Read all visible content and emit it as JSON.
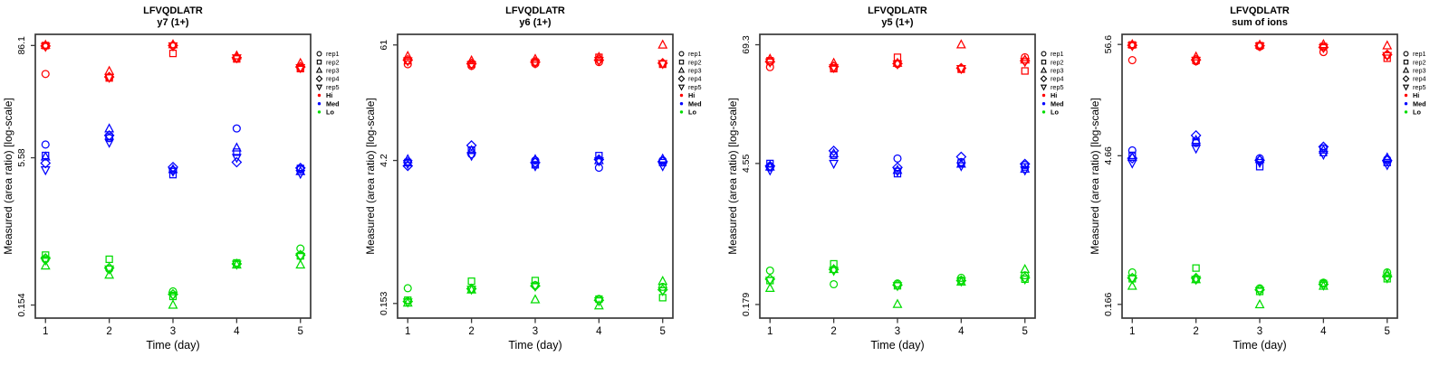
{
  "figure": {
    "background": "#ffffff",
    "xlabel": "Time (day)",
    "ylabel": "Measured (area ratio) [log-scale]",
    "days": [
      1,
      2,
      3,
      4,
      5
    ],
    "xlim": [
      0.84,
      5.16
    ],
    "frame_color": "#3a3a3a",
    "text_color": "#000000"
  },
  "legend": {
    "reps": [
      {
        "label": "rep1",
        "marker": "circle"
      },
      {
        "label": "rep2",
        "marker": "square"
      },
      {
        "label": "rep3",
        "marker": "triangle-up"
      },
      {
        "label": "rep4",
        "marker": "diamond"
      },
      {
        "label": "rep5",
        "marker": "triangle-down"
      }
    ],
    "levels": [
      {
        "label": "Hi",
        "color": "#FF0000"
      },
      {
        "label": "Med",
        "color": "#0000FF"
      },
      {
        "label": "Lo",
        "color": "#00DC00"
      }
    ]
  },
  "chart_data": [
    {
      "type": "scatter",
      "title": "LFVQDLATR",
      "subtitle": "y7 (1+)",
      "xlabel": "Time (day)",
      "ylabel": "Measured (area ratio) [log-scale]",
      "yscale": "log",
      "x": [
        1,
        2,
        3,
        4,
        5
      ],
      "ylim": [
        0.112,
        113
      ],
      "yticks": [
        {
          "label": "86.1",
          "value": 86.1
        },
        {
          "label": "5.58",
          "value": 5.58
        },
        {
          "label": "0.154",
          "value": 0.154
        }
      ],
      "series": [
        {
          "level": "Hi",
          "color": "#FF0000",
          "reps": [
            {
              "rep": "rep1",
              "marker": "circle",
              "y": [
                43,
                39.5,
                86,
                63,
                50
              ]
            },
            {
              "rep": "rep2",
              "marker": "square",
              "y": [
                86,
                39,
                71,
                62,
                49
              ]
            },
            {
              "rep": "rep3",
              "marker": "triangle-up",
              "y": [
                87,
                46,
                88,
                67,
                55.8
              ]
            },
            {
              "rep": "rep4",
              "marker": "diamond",
              "y": [
                85,
                40,
                86,
                64,
                51
              ]
            },
            {
              "rep": "rep5",
              "marker": "triangle-down",
              "y": [
                84,
                39.5,
                85,
                63.5,
                50
              ]
            }
          ]
        },
        {
          "level": "Med",
          "color": "#0000FF",
          "reps": [
            {
              "rep": "rep1",
              "marker": "circle",
              "y": [
                7.7,
                9.0,
                4.1,
                11.4,
                4.2
              ]
            },
            {
              "rep": "rep2",
              "marker": "square",
              "y": [
                5.9,
                9.3,
                3.7,
                6.4,
                4.3
              ]
            },
            {
              "rep": "rep3",
              "marker": "triangle-up",
              "y": [
                5.7,
                11.3,
                4.2,
                7.1,
                4.0
              ]
            },
            {
              "rep": "rep4",
              "marker": "diamond",
              "y": [
                4.9,
                9.6,
                4.45,
                5.0,
                4.35
              ]
            },
            {
              "rep": "rep5",
              "marker": "triangle-down",
              "y": [
                4.15,
                8.1,
                4.0,
                5.6,
                3.8
              ]
            }
          ]
        },
        {
          "level": "Lo",
          "color": "#00DC00",
          "reps": [
            {
              "rep": "rep1",
              "marker": "circle",
              "y": [
                0.47,
                0.37,
                0.215,
                0.42,
                0.61
              ]
            },
            {
              "rep": "rep2",
              "marker": "square",
              "y": [
                0.52,
                0.47,
                0.19,
                0.43,
                0.51
              ]
            },
            {
              "rep": "rep3",
              "marker": "triangle-up",
              "y": [
                0.4,
                0.32,
                0.154,
                0.41,
                0.41
              ]
            },
            {
              "rep": "rep4",
              "marker": "diamond",
              "y": [
                0.48,
                0.38,
                0.2,
                0.42,
                0.52
              ]
            },
            {
              "rep": "rep5",
              "marker": "triangle-down",
              "y": [
                0.46,
                0.37,
                0.195,
                0.415,
                0.5
              ]
            }
          ]
        }
      ]
    },
    {
      "type": "scatter",
      "title": "LFVQDLATR",
      "subtitle": "y6 (1+)",
      "xlabel": "Time (day)",
      "ylabel": "Measured (area ratio) [log-scale]",
      "yscale": "log",
      "x": [
        1,
        2,
        3,
        4,
        5
      ],
      "ylim": [
        0.109,
        78
      ],
      "yticks": [
        {
          "label": "61",
          "value": 61
        },
        {
          "label": "4.2",
          "value": 4.2
        },
        {
          "label": "0.153",
          "value": 0.153
        }
      ],
      "series": [
        {
          "level": "Hi",
          "color": "#FF0000",
          "reps": [
            {
              "rep": "rep1",
              "marker": "circle",
              "y": [
                39,
                37.5,
                39.5,
                41,
                39.5
              ]
            },
            {
              "rep": "rep2",
              "marker": "square",
              "y": [
                42.4,
                39,
                41,
                45.8,
                39
              ]
            },
            {
              "rep": "rep3",
              "marker": "triangle-up",
              "y": [
                47,
                42.4,
                43.9,
                46,
                61
              ]
            },
            {
              "rep": "rep4",
              "marker": "diamond",
              "y": [
                43,
                39.5,
                41,
                43,
                40
              ]
            },
            {
              "rep": "rep5",
              "marker": "triangle-down",
              "y": [
                42,
                38.5,
                40,
                42.5,
                39.5
              ]
            }
          ]
        },
        {
          "level": "Med",
          "color": "#0000FF",
          "reps": [
            {
              "rep": "rep1",
              "marker": "circle",
              "y": [
                4.1,
                4.85,
                4.2,
                3.55,
                4.2
              ]
            },
            {
              "rep": "rep2",
              "marker": "square",
              "y": [
                4.0,
                5.35,
                3.8,
                4.7,
                4.0
              ]
            },
            {
              "rep": "rep3",
              "marker": "triangle-up",
              "y": [
                4.3,
                5.3,
                4.3,
                4.2,
                4.35
              ]
            },
            {
              "rep": "rep4",
              "marker": "diamond",
              "y": [
                3.7,
                5.95,
                4.0,
                4.3,
                4.1
              ]
            },
            {
              "rep": "rep5",
              "marker": "triangle-down",
              "y": [
                3.9,
                4.7,
                3.7,
                4.15,
                3.7
              ]
            }
          ]
        },
        {
          "level": "Lo",
          "color": "#00DC00",
          "reps": [
            {
              "rep": "rep1",
              "marker": "circle",
              "y": [
                0.218,
                0.213,
                0.234,
                0.17,
                0.225
              ]
            },
            {
              "rep": "rep2",
              "marker": "square",
              "y": [
                0.165,
                0.256,
                0.26,
                0.169,
                0.175
              ]
            },
            {
              "rep": "rep3",
              "marker": "triangle-up",
              "y": [
                0.155,
                0.21,
                0.167,
                0.145,
                0.256
              ]
            },
            {
              "rep": "rep4",
              "marker": "diamond",
              "y": [
                0.16,
                0.215,
                0.23,
                0.165,
                0.21
              ]
            },
            {
              "rep": "rep5",
              "marker": "triangle-down",
              "y": [
                0.158,
                0.212,
                0.228,
                0.162,
                0.205
              ]
            }
          ]
        }
      ]
    },
    {
      "type": "scatter",
      "title": "LFVQDLATR",
      "subtitle": "y5 (1+)",
      "xlabel": "Time (day)",
      "ylabel": "Measured (area ratio) [log-scale]",
      "yscale": "log",
      "x": [
        1,
        2,
        3,
        4,
        5
      ],
      "ylim": [
        0.131,
        88
      ],
      "yticks": [
        {
          "label": "69.3",
          "value": 69.3
        },
        {
          "label": "4.55",
          "value": 4.55
        },
        {
          "label": "0.179",
          "value": 0.179
        }
      ],
      "series": [
        {
          "level": "Hi",
          "color": "#FF0000",
          "reps": [
            {
              "rep": "rep1",
              "marker": "circle",
              "y": [
                41.5,
                40.5,
                44.5,
                40,
                52
              ]
            },
            {
              "rep": "rep2",
              "marker": "square",
              "y": [
                48,
                40,
                52,
                39.5,
                38
              ]
            },
            {
              "rep": "rep3",
              "marker": "triangle-up",
              "y": [
                50,
                45.5,
                45.5,
                69.3,
                49
              ]
            },
            {
              "rep": "rep4",
              "marker": "diamond",
              "y": [
                47,
                42,
                45,
                40.5,
                48
              ]
            },
            {
              "rep": "rep5",
              "marker": "triangle-down",
              "y": [
                46.5,
                41,
                44.5,
                40,
                47
              ]
            }
          ]
        },
        {
          "level": "Med",
          "color": "#0000FF",
          "reps": [
            {
              "rep": "rep1",
              "marker": "circle",
              "y": [
                4.16,
                5.5,
                5.1,
                4.7,
                4.4
              ]
            },
            {
              "rep": "rep2",
              "marker": "square",
              "y": [
                4.55,
                5.5,
                3.6,
                4.6,
                4.2
              ]
            },
            {
              "rep": "rep3",
              "marker": "triangle-up",
              "y": [
                4.2,
                5.7,
                3.9,
                4.5,
                4.0
              ]
            },
            {
              "rep": "rep4",
              "marker": "diamond",
              "y": [
                4.3,
                6.08,
                4.16,
                5.3,
                4.5
              ]
            },
            {
              "rep": "rep5",
              "marker": "triangle-down",
              "y": [
                3.9,
                4.55,
                3.8,
                4.3,
                3.9
              ]
            }
          ]
        },
        {
          "level": "Lo",
          "color": "#00DC00",
          "reps": [
            {
              "rep": "rep1",
              "marker": "circle",
              "y": [
                0.39,
                0.285,
                0.29,
                0.33,
                0.35
              ]
            },
            {
              "rep": "rep2",
              "marker": "square",
              "y": [
                0.31,
                0.455,
                0.275,
                0.31,
                0.32
              ]
            },
            {
              "rep": "rep3",
              "marker": "triangle-up",
              "y": [
                0.26,
                0.4,
                0.18,
                0.3,
                0.4
              ]
            },
            {
              "rep": "rep4",
              "marker": "diamond",
              "y": [
                0.32,
                0.4,
                0.28,
                0.31,
                0.33
              ]
            },
            {
              "rep": "rep5",
              "marker": "triangle-down",
              "y": [
                0.31,
                0.39,
                0.275,
                0.305,
                0.32
              ]
            }
          ]
        }
      ]
    },
    {
      "type": "scatter",
      "title": "LFVQDLATR",
      "subtitle": "sum of ions",
      "xlabel": "Time (day)",
      "ylabel": "Measured (area ratio) [log-scale]",
      "yscale": "log",
      "x": [
        1,
        2,
        3,
        4,
        5
      ],
      "ylim": [
        0.122,
        71
      ],
      "yticks": [
        {
          "label": "56.6",
          "value": 56.6
        },
        {
          "label": "4.66",
          "value": 4.66
        },
        {
          "label": "0.166",
          "value": 0.166
        }
      ],
      "series": [
        {
          "level": "Hi",
          "color": "#FF0000",
          "reps": [
            {
              "rep": "rep1",
              "marker": "circle",
              "y": [
                39.8,
                38.8,
                54,
                47.7,
                44.5
              ]
            },
            {
              "rep": "rep2",
              "marker": "square",
              "y": [
                56,
                39.5,
                55,
                54,
                41.5
              ]
            },
            {
              "rep": "rep3",
              "marker": "triangle-up",
              "y": [
                56.6,
                42.9,
                56,
                56.6,
                55
              ]
            },
            {
              "rep": "rep4",
              "marker": "diamond",
              "y": [
                55.5,
                40,
                55,
                53,
                45
              ]
            },
            {
              "rep": "rep5",
              "marker": "triangle-down",
              "y": [
                55,
                39.5,
                54.5,
                52.5,
                44
              ]
            }
          ]
        },
        {
          "level": "Med",
          "color": "#0000FF",
          "reps": [
            {
              "rep": "rep1",
              "marker": "circle",
              "y": [
                5.25,
                6.2,
                4.4,
                5.5,
                4.3
              ]
            },
            {
              "rep": "rep2",
              "marker": "square",
              "y": [
                4.7,
                6.4,
                3.65,
                5.0,
                4.0
              ]
            },
            {
              "rep": "rep3",
              "marker": "triangle-up",
              "y": [
                4.5,
                6.6,
                4.3,
                5.3,
                4.45
              ]
            },
            {
              "rep": "rep4",
              "marker": "diamond",
              "y": [
                4.4,
                7.35,
                4.2,
                5.7,
                4.2
              ]
            },
            {
              "rep": "rep5",
              "marker": "triangle-down",
              "y": [
                3.95,
                5.5,
                4.0,
                4.8,
                3.8
              ]
            }
          ]
        },
        {
          "level": "Lo",
          "color": "#00DC00",
          "reps": [
            {
              "rep": "rep1",
              "marker": "circle",
              "y": [
                0.34,
                0.29,
                0.238,
                0.27,
                0.34
              ]
            },
            {
              "rep": "rep2",
              "marker": "square",
              "y": [
                0.295,
                0.375,
                0.222,
                0.265,
                0.295
              ]
            },
            {
              "rep": "rep3",
              "marker": "triangle-up",
              "y": [
                0.25,
                0.29,
                0.165,
                0.25,
                0.33
              ]
            },
            {
              "rep": "rep4",
              "marker": "diamond",
              "y": [
                0.3,
                0.3,
                0.23,
                0.26,
                0.31
              ]
            },
            {
              "rep": "rep5",
              "marker": "triangle-down",
              "y": [
                0.295,
                0.29,
                0.225,
                0.255,
                0.3
              ]
            }
          ]
        }
      ]
    }
  ]
}
